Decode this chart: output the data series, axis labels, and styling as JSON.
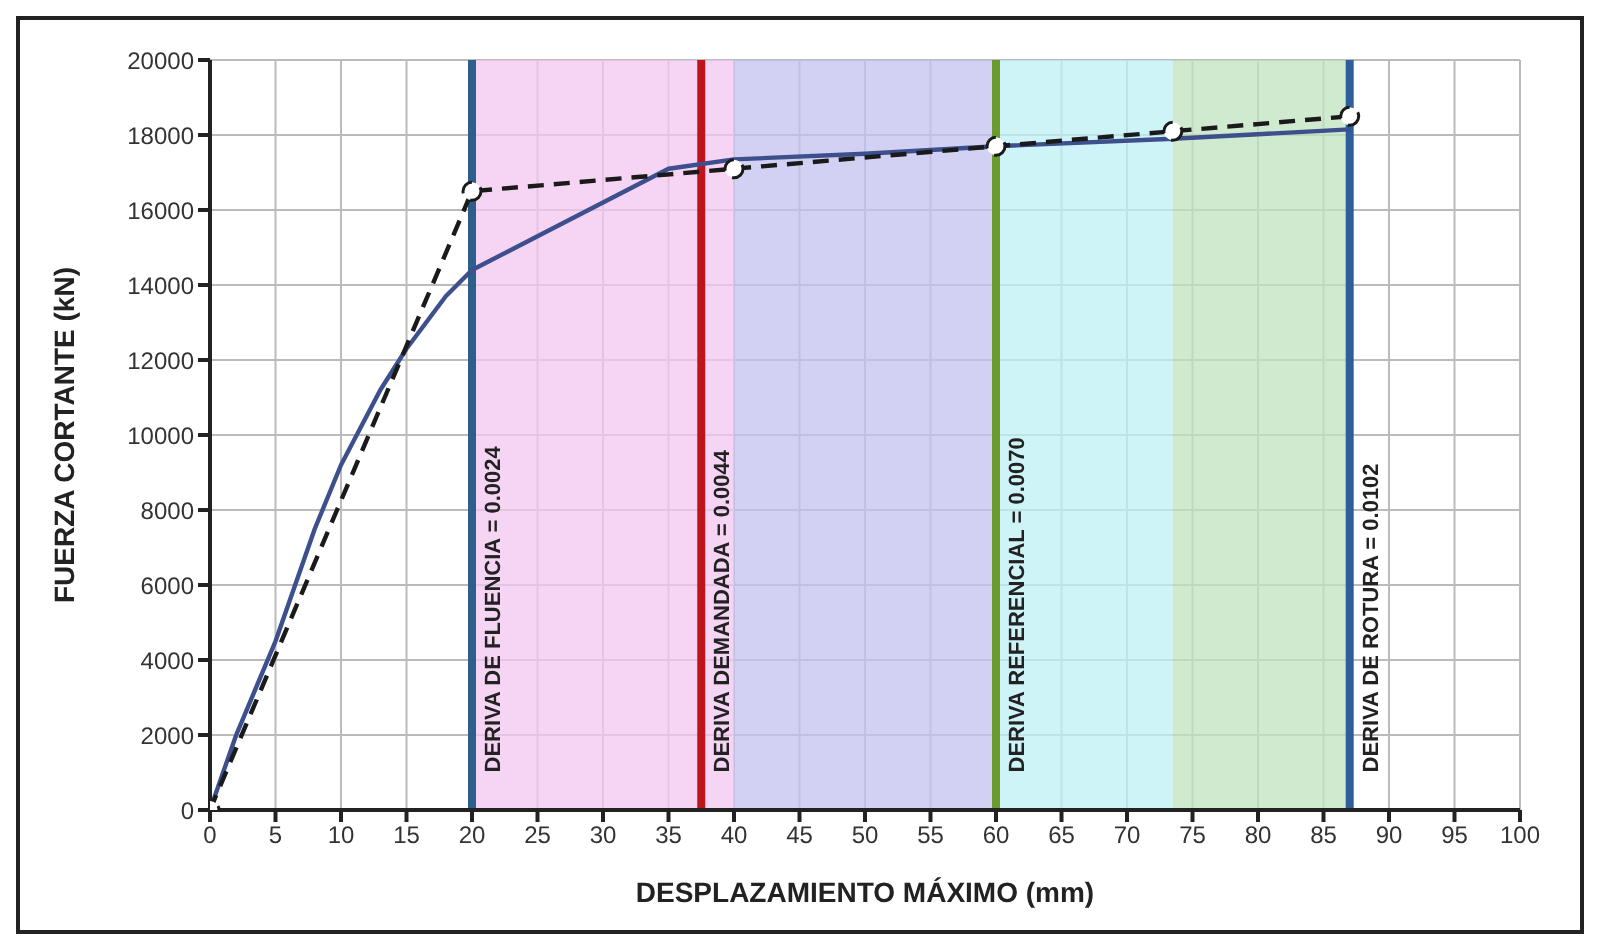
{
  "chart_data": {
    "type": "line",
    "xlabel": "DESPLAZAMIENTO MÁXIMO (mm)",
    "ylabel": "FUERZA CORTANTE (kN)",
    "xlim": [
      0,
      100
    ],
    "xticks": [
      0,
      5,
      10,
      15,
      20,
      25,
      30,
      35,
      40,
      45,
      50,
      55,
      60,
      65,
      70,
      75,
      80,
      85,
      90,
      95,
      100
    ],
    "ylim": [
      0,
      20000
    ],
    "yticks": [
      0,
      2000,
      4000,
      6000,
      8000,
      10000,
      12000,
      14000,
      16000,
      18000,
      20000
    ],
    "grid": true,
    "line_style": "solid",
    "series": [
      {
        "color": "#3d4f8c",
        "marker": "none",
        "x": [
          0,
          2,
          5,
          8,
          10,
          13,
          15,
          18,
          20,
          25,
          30,
          35,
          40,
          50,
          60,
          73.5,
          87
        ],
        "values": [
          0,
          2000,
          4500,
          7500,
          9200,
          11200,
          12300,
          13700,
          14400,
          15300,
          16200,
          17100,
          17350,
          17500,
          17700,
          17900,
          18150
        ]
      },
      {
        "color": "#1a1a1a",
        "marker": "circle",
        "line_style": "dashed",
        "x": [
          0,
          20,
          40,
          60,
          73.5,
          87
        ],
        "values": [
          0,
          16500,
          17100,
          17700,
          18100,
          18500
        ]
      }
    ],
    "ref_lines": [
      {
        "axis": "x",
        "value": 20,
        "color": "#2e5f8a"
      },
      {
        "axis": "x",
        "value": 37.5,
        "color": "#c0141c"
      },
      {
        "axis": "x",
        "value": 60,
        "color": "#6b9a2e"
      },
      {
        "axis": "x",
        "value": 87,
        "color": "#2e5f9a"
      }
    ],
    "annotations": [
      {
        "text": "DERIVA DE FLUENCIA = 0.0024",
        "x": 20,
        "y": 1000
      },
      {
        "text": "DERIVA DEMANDADA = 0.0044",
        "x": 37.5,
        "y": 1000
      },
      {
        "text": "DERIVA REFERENCIAL = 0.0070",
        "x": 60,
        "y": 1000
      },
      {
        "text": "DERIVA DE ROTURA = 0.0102",
        "x": 87,
        "y": 1000
      }
    ],
    "bands": [
      {
        "axis": "x",
        "from": 20,
        "to": 40,
        "color": "#f3c6f0"
      },
      {
        "axis": "x",
        "from": 40,
        "to": 60,
        "color": "#c4c2ef"
      },
      {
        "axis": "x",
        "from": 60,
        "to": 73.5,
        "color": "#bdf0f5"
      },
      {
        "axis": "x",
        "from": 73.5,
        "to": 87,
        "color": "#bfe3bd"
      }
    ]
  }
}
